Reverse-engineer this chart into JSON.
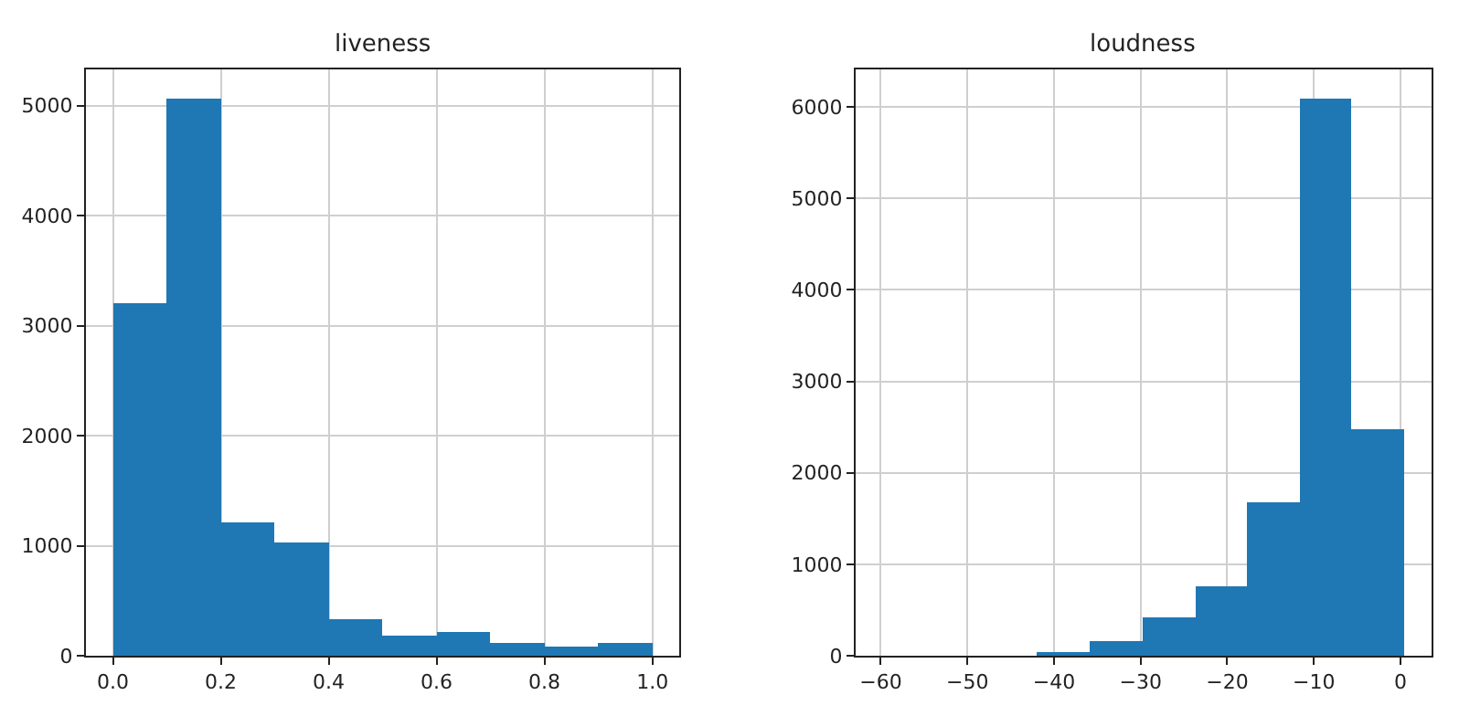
{
  "chart_data": [
    {
      "type": "histogram",
      "title": "liveness",
      "color": "#1f77b4",
      "bins": [
        0.0,
        0.1,
        0.2,
        0.3,
        0.4,
        0.5,
        0.6,
        0.7,
        0.8,
        0.9,
        1.0
      ],
      "values": [
        3200,
        5070,
        1210,
        1030,
        340,
        190,
        220,
        120,
        80,
        120
      ],
      "xlim": [
        -0.05,
        1.05
      ],
      "xticks": [
        {
          "value": 0,
          "label": "0.0"
        },
        0.2,
        0.4,
        0.6,
        0.8,
        {
          "value": 1,
          "label": "1.0"
        }
      ],
      "ylim": [
        0,
        5330
      ],
      "yticks": [
        0,
        1000,
        2000,
        3000,
        4000,
        5000
      ],
      "grid": true
    },
    {
      "type": "histogram",
      "title": "loudness",
      "color": "#1f77b4",
      "bins": [
        -41.9,
        -35.8,
        -29.8,
        -23.7,
        -17.7,
        -11.6,
        -5.6,
        0.5
      ],
      "values": [
        40,
        150,
        420,
        760,
        1680,
        6100,
        2480
      ],
      "xlim": [
        -62.9,
        3.6
      ],
      "xticks": [
        {
          "value": -60,
          "label": "−60"
        },
        {
          "value": -50,
          "label": "−50"
        },
        {
          "value": -40,
          "label": "−40"
        },
        {
          "value": -30,
          "label": "−30"
        },
        {
          "value": -20,
          "label": "−20"
        },
        {
          "value": -10,
          "label": "−10"
        },
        0
      ],
      "ylim": [
        0,
        6410
      ],
      "yticks": [
        0,
        1000,
        2000,
        3000,
        4000,
        5000,
        6000
      ],
      "grid": true
    }
  ]
}
